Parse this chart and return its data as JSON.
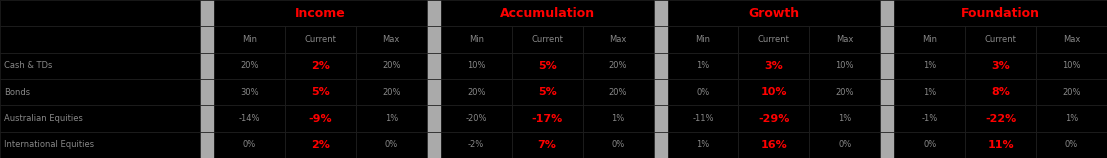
{
  "rows": [
    {
      "label": "Cash & TDs",
      "income": [
        "20%",
        "2%",
        "20%"
      ],
      "accumulation": [
        "10%",
        "5%",
        "20%"
      ],
      "growth": [
        "1%",
        "3%",
        "10%"
      ],
      "foundation": [
        "1%",
        "3%",
        "10%"
      ]
    },
    {
      "label": "Bonds",
      "income": [
        "30%",
        "5%",
        "20%"
      ],
      "accumulation": [
        "20%",
        "5%",
        "20%"
      ],
      "growth": [
        "0%",
        "10%",
        "20%"
      ],
      "foundation": [
        "1%",
        "8%",
        "20%"
      ]
    },
    {
      "label": "Australian Equities",
      "income": [
        "-14%",
        "-9%",
        "1%"
      ],
      "accumulation": [
        "-20%",
        "-17%",
        "1%"
      ],
      "growth": [
        "-11%",
        "-29%",
        "1%"
      ],
      "foundation": [
        "-1%",
        "-22%",
        "1%"
      ]
    },
    {
      "label": "International Equities",
      "income": [
        "0%",
        "2%",
        "0%"
      ],
      "accumulation": [
        "-2%",
        "7%",
        "0%"
      ],
      "growth": [
        "1%",
        "16%",
        "0%"
      ],
      "foundation": [
        "0%",
        "11%",
        "0%"
      ]
    }
  ],
  "section_headers": [
    "Income",
    "Accumulation",
    "Growth",
    "Foundation"
  ],
  "col_headers": [
    "Min",
    "Current",
    "Max"
  ],
  "bg_black": "#000000",
  "bg_gray": "#aaaaaa",
  "text_white": "#ffffff",
  "text_red": "#ff0000",
  "text_gray": "#888888",
  "header_red": "#ff0000"
}
